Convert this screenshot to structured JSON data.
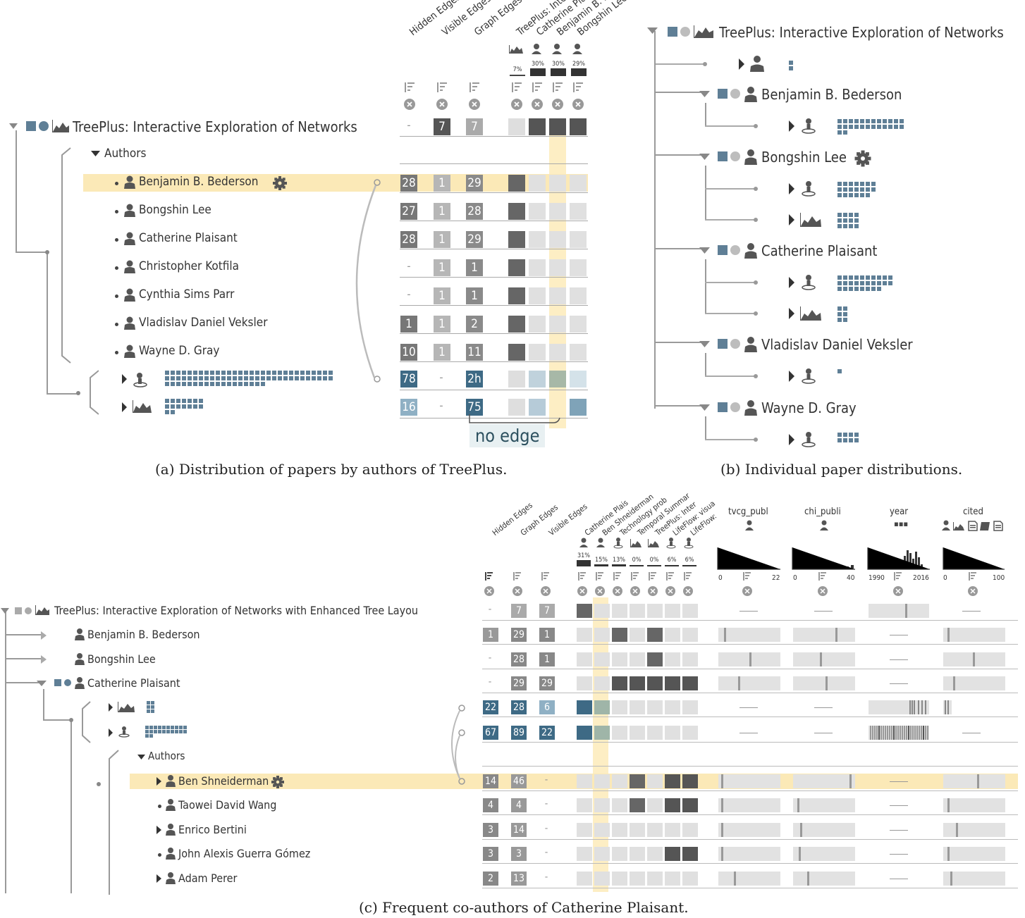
{
  "colors": {
    "dark_cell": "#666666",
    "mid_cell": "#a9a9a9",
    "blue_dark": "#3e6a85",
    "blue_light": "#7fa3b8",
    "highlight": "#fbe9b7",
    "icon_blue": "#5f7f96",
    "empty_cell": "#dedede"
  },
  "panel_a": {
    "caption": "(a)  Distribution of papers by authors of TreePlus.",
    "column_headers": [
      "Hidden Edges",
      "Visible Edges",
      "Graph Edges",
      "TreePlus: Inte",
      "Catherine Pla",
      "Benjamin B. B",
      "Bongshin Lee"
    ],
    "percents": [
      "7%",
      "30%",
      "30%",
      "29%"
    ],
    "root_label": "TreePlus: Interactive Exploration of Networks",
    "root_values": [
      "-",
      "7",
      "7"
    ],
    "authors_label": "Authors",
    "rows": [
      {
        "name": "Benjamin B. Bederson",
        "values": [
          "28",
          "1",
          "29"
        ]
      },
      {
        "name": "Bongshin Lee",
        "values": [
          "27",
          "1",
          "28"
        ]
      },
      {
        "name": "Catherine Plaisant",
        "values": [
          "28",
          "1",
          "29"
        ]
      },
      {
        "name": "Christopher Kotfila",
        "values": [
          "-",
          "1",
          "1"
        ]
      },
      {
        "name": "Cynthia Sims Parr",
        "values": [
          "-",
          "1",
          "1"
        ]
      },
      {
        "name": "Vladislav Daniel Veksler",
        "values": [
          "1",
          "1",
          "2"
        ]
      },
      {
        "name": "Wayne D. Gray",
        "values": [
          "10",
          "1",
          "11"
        ]
      }
    ],
    "group_rows": [
      {
        "values": [
          "78",
          "-",
          "2h"
        ]
      },
      {
        "values": [
          "16",
          "-",
          "75"
        ]
      }
    ],
    "annotation": "no edge"
  },
  "panel_b": {
    "caption": "(b)  Individual paper distributions.",
    "root_label": "TreePlus: Interactive Exploration of Networks",
    "authors": [
      "Benjamin B. Bederson",
      "Bongshin Lee",
      "Catherine Plaisant",
      "Vladislav Daniel Veksler",
      "Wayne D. Gray"
    ]
  },
  "panel_c": {
    "caption": "(c)  Frequent co-authors of Catherine Plaisant.",
    "column_headers": [
      "Hidden Edges",
      "Graph Edges",
      "Visible Edges",
      "Catherine Plais",
      "Ben Shneiderman",
      "Technology prob",
      "Temporal Summar",
      "TreePlus: Inter",
      "LifeFlow: visua",
      "LifeFlow:"
    ],
    "percents": [
      "31%",
      "15%",
      "13%",
      "0%",
      "0%",
      "6%",
      "6%"
    ],
    "hist_columns": [
      {
        "name": "tvcg_publ",
        "min": "0",
        "max": "22"
      },
      {
        "name": "chi_publi",
        "min": "0",
        "max": "40"
      },
      {
        "name": "year",
        "min": "1990",
        "max": "2016"
      },
      {
        "name": "cited",
        "min": "0",
        "max": "100"
      }
    ],
    "year_icon": "▪▪▪",
    "root_label": "TreePlus: Interactive Exploration of Networks with Enhanced Tree Layou",
    "root_values": [
      "-",
      "7",
      "7"
    ],
    "top_rows": [
      {
        "name": "Benjamin B. Bederson",
        "values": [
          "1",
          "29",
          "1"
        ]
      },
      {
        "name": "Bongshin Lee",
        "values": [
          "-",
          "28",
          "1"
        ]
      },
      {
        "name": "Catherine Plaisant",
        "values": [
          "-",
          "29",
          "29"
        ]
      }
    ],
    "group_rows": [
      {
        "values": [
          "22",
          "28",
          "6"
        ]
      },
      {
        "values": [
          "67",
          "89",
          "22"
        ]
      }
    ],
    "authors_label": "Authors",
    "coauthors": [
      {
        "name": "Ben Shneiderman",
        "values": [
          "14",
          "46",
          "-"
        ]
      },
      {
        "name": "Taowei David Wang",
        "values": [
          "4",
          "4",
          "-"
        ]
      },
      {
        "name": "Enrico Bertini",
        "values": [
          "3",
          "14",
          "-"
        ]
      },
      {
        "name": "John Alexis Guerra Gómez",
        "values": [
          "3",
          "3",
          "-"
        ]
      },
      {
        "name": "Adam Perer",
        "values": [
          "2",
          "13",
          "-"
        ]
      }
    ]
  }
}
